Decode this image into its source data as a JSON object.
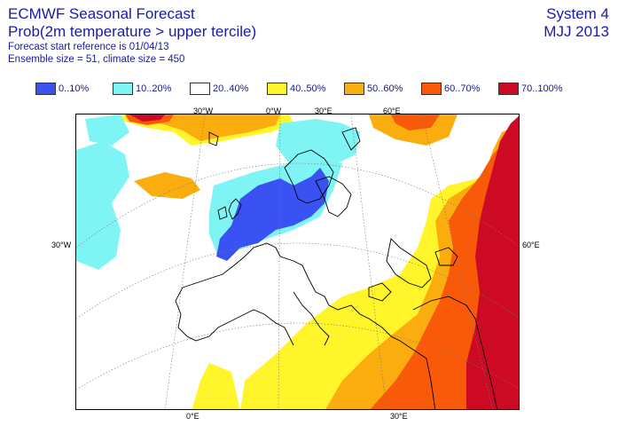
{
  "header": {
    "title": "ECMWF Seasonal Forecast",
    "subtitle": "Prob(2m temperature > upper tercile)",
    "start_ref": "Forecast start reference is 01/04/13",
    "ensemble": "Ensemble size = 51, climate size = 450",
    "system": "System 4",
    "season": "MJJ 2013"
  },
  "legend": [
    {
      "label": "0..10%",
      "color": "#3b52f2"
    },
    {
      "label": "10..20%",
      "color": "#7ef4f4"
    },
    {
      "label": "20..40%",
      "color": "#ffffff"
    },
    {
      "label": "40..50%",
      "color": "#fff52a"
    },
    {
      "label": "50..60%",
      "color": "#fbad10"
    },
    {
      "label": "60..70%",
      "color": "#f85a0a"
    },
    {
      "label": "70..100%",
      "color": "#cc0a24"
    }
  ],
  "axes": {
    "top": [
      "30°W",
      "0°W",
      "30°E",
      "60°E"
    ],
    "left": "30°W",
    "right": "60°E",
    "bottom": [
      "0°E",
      "30°E"
    ]
  }
}
